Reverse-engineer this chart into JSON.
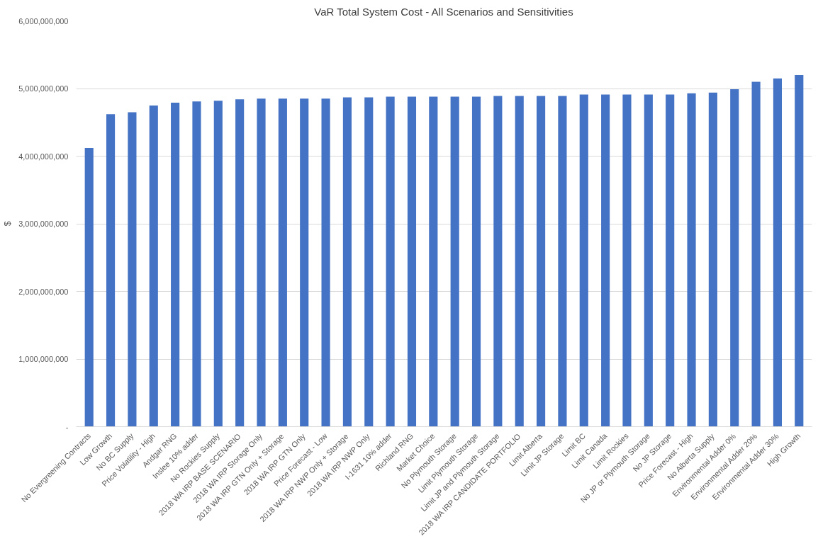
{
  "chart_data": {
    "type": "bar",
    "title": "VaR Total System Cost - All Scenarios and Sensitivities",
    "ylabel": "$",
    "categories": [
      "No Evergreening Contracts",
      "Low Growth",
      "No BC Supply",
      "Price Volatility - High",
      "Andgar RNG",
      "Inslee 10% adder",
      "No Rockies Supply",
      "2018 WA IRP BASE SCENARIO",
      "2018 WA IRP Storage Only",
      "2018 WA IRP GTN Only + Storage",
      "2018 WA IRP GTN Only",
      "Price Forecast - Low",
      "2018 WA IRP NWP Only + Storage",
      "2018 WA IRP NWP Only",
      "I-1631 10% adder",
      "Richland RNG",
      "Market Choice",
      "No Plymouth Storage",
      "Limit Plymouth Storage",
      "Limit JP and Plymouth Storage",
      "2018 WA IRP CANDIDATE PORTFOLIO",
      "Limit Alberta",
      "Limit JP Storage",
      "Limit BC",
      "Limit Canada",
      "Limit Rockies",
      "No JP or Plymouth Storage",
      "No JP Storage",
      "Price Forecast - High",
      "No Alberta Supply",
      "Environmental Adder 0%",
      "Environmental Adder 20%",
      "Environmental Adder 30%",
      "High Growth"
    ],
    "values": [
      4120000000,
      4620000000,
      4650000000,
      4750000000,
      4790000000,
      4810000000,
      4820000000,
      4840000000,
      4850000000,
      4850000000,
      4850000000,
      4850000000,
      4870000000,
      4870000000,
      4880000000,
      4880000000,
      4880000000,
      4880000000,
      4880000000,
      4890000000,
      4890000000,
      4890000000,
      4890000000,
      4910000000,
      4910000000,
      4910000000,
      4910000000,
      4910000000,
      4930000000,
      4940000000,
      4990000000,
      5100000000,
      5150000000,
      5200000000
    ],
    "color": "#4472c4",
    "ylim": [
      0,
      6000000000
    ],
    "yticks": [
      {
        "value": 0,
        "label": "-"
      },
      {
        "value": 1000000000,
        "label": "1,000,000,000"
      },
      {
        "value": 2000000000,
        "label": "2,000,000,000"
      },
      {
        "value": 3000000000,
        "label": "3,000,000,000"
      },
      {
        "value": 4000000000,
        "label": "4,000,000,000"
      },
      {
        "value": 5000000000,
        "label": "5,000,000,000"
      },
      {
        "value": 6000000000,
        "label": "6,000,000,000"
      }
    ],
    "grid": "y"
  }
}
